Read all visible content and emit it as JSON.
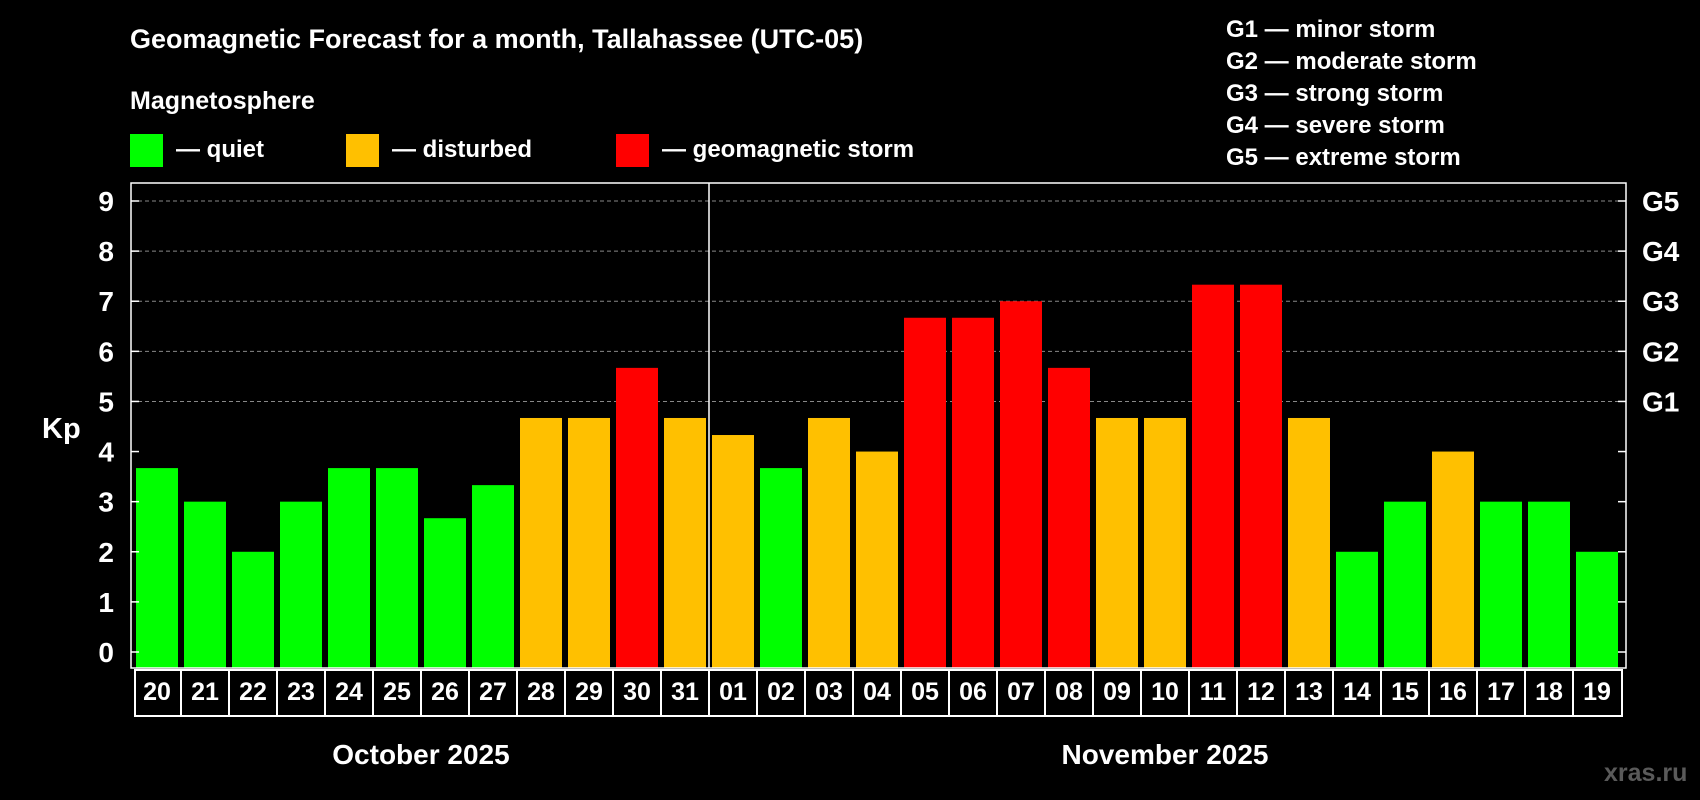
{
  "title": "Geomagnetic Forecast for a month, Tallahassee (UTC-05)",
  "legend": {
    "heading": "Magnetosphere",
    "items": [
      {
        "label": "— quiet",
        "color": "#00ff00"
      },
      {
        "label": "— disturbed",
        "color": "#ffc000"
      },
      {
        "label": "— geomagnetic storm",
        "color": "#ff0000"
      }
    ],
    "storm_levels": [
      "G1 — minor storm",
      "G2 — moderate storm",
      "G3 — strong storm",
      "G4 — severe storm",
      "G5 — extreme storm"
    ]
  },
  "watermark": "xras.ru",
  "chart_data": {
    "type": "bar",
    "title": "Geomagnetic Forecast for a month, Tallahassee (UTC-05)",
    "ylabel": "Kp",
    "ylim": [
      0,
      9
    ],
    "yticks": [
      "0",
      "1",
      "2",
      "3",
      "4",
      "5",
      "6",
      "7",
      "8",
      "9"
    ],
    "right_axis": [
      {
        "value": 5,
        "label": "G1"
      },
      {
        "value": 6,
        "label": "G2"
      },
      {
        "value": 7,
        "label": "G3"
      },
      {
        "value": 8,
        "label": "G4"
      },
      {
        "value": 9,
        "label": "G5"
      }
    ],
    "grid": true,
    "categories": [
      "20",
      "21",
      "22",
      "23",
      "24",
      "25",
      "26",
      "27",
      "28",
      "29",
      "30",
      "31",
      "01",
      "02",
      "03",
      "04",
      "05",
      "06",
      "07",
      "08",
      "09",
      "10",
      "11",
      "12",
      "13",
      "14",
      "15",
      "16",
      "17",
      "18",
      "19"
    ],
    "values": [
      3.67,
      3,
      2,
      3,
      3.67,
      3.67,
      2.67,
      3.33,
      4.67,
      4.67,
      5.67,
      4.67,
      4.33,
      3.67,
      4.67,
      4,
      6.67,
      6.67,
      7,
      5.67,
      4.67,
      4.67,
      7.33,
      7.33,
      4.67,
      2,
      3,
      4,
      3,
      3,
      2
    ],
    "month_groups": [
      {
        "label": "October 2025",
        "start": 0,
        "count": 12
      },
      {
        "label": "November 2025",
        "start": 12,
        "count": 19
      }
    ],
    "colors": {
      "quiet": "#00ff00",
      "disturbed": "#ffc000",
      "storm": "#ff0000"
    },
    "thresholds": {
      "disturbed": 4,
      "storm": 5
    }
  }
}
